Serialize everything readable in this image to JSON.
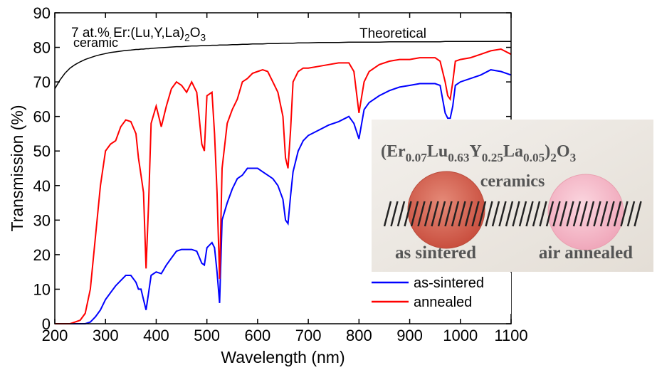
{
  "chart_data": {
    "type": "line",
    "x_label": "Wavelength (nm)",
    "y_label": "Transmission (%)",
    "xlim": [
      200,
      1100
    ],
    "ylim": [
      0,
      90
    ],
    "xticks": [
      200,
      300,
      400,
      500,
      600,
      700,
      800,
      900,
      1000,
      1100
    ],
    "yticks": [
      0,
      10,
      20,
      30,
      40,
      50,
      60,
      70,
      80,
      90
    ],
    "legend": "lower right",
    "x": [
      200,
      210,
      220,
      230,
      240,
      250,
      260,
      270,
      280,
      290,
      300,
      310,
      320,
      330,
      340,
      350,
      360,
      365,
      370,
      375,
      380,
      385,
      390,
      400,
      410,
      420,
      430,
      440,
      450,
      460,
      470,
      480,
      490,
      495,
      500,
      510,
      515,
      520,
      525,
      530,
      540,
      550,
      560,
      570,
      580,
      590,
      600,
      610,
      620,
      630,
      640,
      650,
      655,
      660,
      665,
      670,
      680,
      690,
      700,
      720,
      740,
      760,
      780,
      790,
      800,
      810,
      820,
      840,
      860,
      880,
      900,
      920,
      940,
      950,
      960,
      970,
      975,
      980,
      985,
      990,
      1000,
      1020,
      1040,
      1060,
      1080,
      1100
    ],
    "series": [
      {
        "name": "as-sintered",
        "color": "#0000ff",
        "values": [
          0,
          0,
          0,
          0,
          0,
          0,
          0,
          0.5,
          2,
          4,
          7,
          9,
          11,
          12.5,
          14,
          14,
          12,
          10,
          10,
          7,
          4,
          9,
          14,
          15,
          14.5,
          17,
          19,
          21,
          21.5,
          21.5,
          21.5,
          21,
          17.5,
          17,
          22,
          23.5,
          22,
          15,
          6,
          30,
          35,
          39,
          42,
          43,
          45,
          45,
          45,
          44,
          43,
          42,
          40,
          36,
          30,
          29,
          37,
          44,
          50,
          53,
          54.5,
          56,
          57.5,
          58.5,
          60,
          58,
          53.5,
          62,
          64,
          66,
          67.5,
          68.5,
          69,
          69.5,
          69.5,
          69.5,
          69,
          61,
          59.5,
          59.5,
          63,
          69,
          70,
          71,
          72,
          73.5,
          73,
          72
        ]
      },
      {
        "name": "annealed",
        "color": "#ff0000",
        "values": [
          0,
          0,
          0,
          0,
          0.5,
          1,
          3,
          10,
          25,
          40,
          50,
          52,
          53,
          57,
          59,
          58.5,
          55,
          48,
          43,
          38,
          16,
          35,
          58,
          63,
          57,
          63,
          68,
          70,
          69,
          67,
          70,
          67,
          52,
          50,
          66,
          67,
          55,
          38,
          13,
          45,
          58,
          62,
          65,
          70,
          71,
          72.5,
          73,
          73.5,
          73,
          70,
          67,
          60,
          48,
          45,
          56,
          70,
          73,
          74,
          74,
          74.5,
          75,
          75.5,
          75.5,
          73,
          61,
          70,
          73,
          75,
          76,
          76.5,
          76.5,
          77,
          77,
          77,
          76,
          70,
          66,
          65,
          70,
          76,
          76.5,
          77,
          78,
          79,
          79.5,
          78
        ]
      }
    ],
    "theoretical": {
      "label": "Theoretical",
      "color": "#000000",
      "values": [
        68,
        70.5,
        72.5,
        74,
        75,
        75.8,
        76.5,
        77,
        77.5,
        77.9,
        78.2,
        78.5,
        78.7,
        78.9,
        79.1,
        79.2,
        79.4,
        79.4,
        79.5,
        79.5,
        79.6,
        79.6,
        79.7,
        79.8,
        79.9,
        80,
        80.1,
        80.2,
        80.2,
        80.3,
        80.4,
        80.4,
        80.5,
        80.5,
        80.5,
        80.6,
        80.6,
        80.6,
        80.7,
        80.7,
        80.7,
        80.8,
        80.8,
        80.9,
        80.9,
        81,
        81,
        81,
        81.1,
        81.1,
        81.1,
        81.2,
        81.2,
        81.2,
        81.2,
        81.2,
        81.3,
        81.3,
        81.3,
        81.4,
        81.4,
        81.4,
        81.5,
        81.5,
        81.5,
        81.5,
        81.5,
        81.5,
        81.6,
        81.6,
        81.6,
        81.6,
        81.6,
        81.6,
        81.6,
        81.7,
        81.7,
        81.7,
        81.7,
        81.7,
        81.7,
        81.7,
        81.7,
        81.7,
        81.7,
        81.7
      ]
    },
    "sample_label": [
      {
        "text": "7 at.% Er:(Lu,Y,La)"
      },
      {
        "text": "2",
        "sub": true
      },
      {
        "text": "O"
      },
      {
        "text": "3",
        "sub": true
      }
    ],
    "sample_label_line2": "ceramic",
    "inset": {
      "formula": [
        {
          "text": "(Er"
        },
        {
          "text": "0.07",
          "sub": true
        },
        {
          "text": "Lu"
        },
        {
          "text": "0.63",
          "sub": true
        },
        {
          "text": "Y"
        },
        {
          "text": "0.25",
          "sub": true
        },
        {
          "text": "La"
        },
        {
          "text": "0.05",
          "sub": true
        },
        {
          "text": ")"
        },
        {
          "text": "2",
          "sub": true
        },
        {
          "text": "O"
        },
        {
          "text": "3",
          "sub": true
        }
      ],
      "subtitle": "ceramics",
      "left_caption": "as sintered",
      "right_caption": "air annealed"
    }
  }
}
